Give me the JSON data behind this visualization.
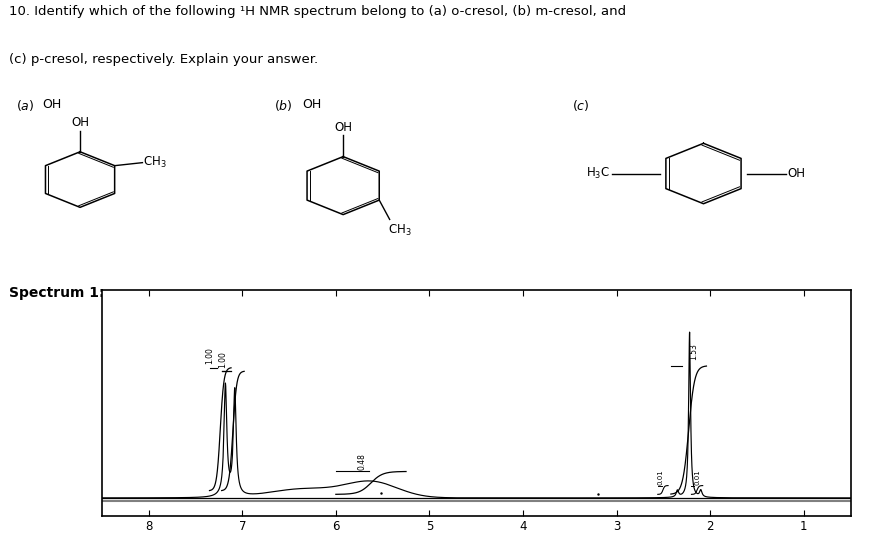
{
  "title_line1": "10. Identify which of the following ¹H NMR spectrum belong to (a) o-cresol, (b) m-cresol, and",
  "title_line2": "(c) p-cresol, respectively. Explain your answer.",
  "spectrum1_label": "Spectrum 1:",
  "background_color": "#ffffff",
  "plot_bg": "#ffffff",
  "spectrum_color": "#000000",
  "x_ticks": [
    8,
    7,
    6,
    5,
    4,
    3,
    2,
    1
  ],
  "x_min": 0.5,
  "x_max": 8.5,
  "figwidth": 8.86,
  "figheight": 5.37
}
